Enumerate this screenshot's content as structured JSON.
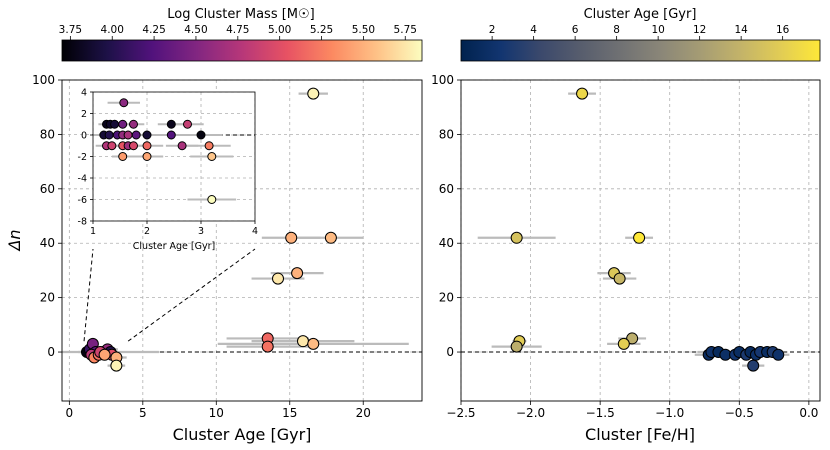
{
  "colors": {
    "errorbar": "#bbbbbb",
    "grid": "#b0b0b0",
    "marker_edge": "#000000",
    "magma": [
      "#000004",
      "#1d1147",
      "#51127c",
      "#822681",
      "#b73779",
      "#e75263",
      "#fc8961",
      "#fec287",
      "#fcfdbf"
    ],
    "cividis": [
      "#00224e",
      "#123570",
      "#3b496c",
      "#575d6d",
      "#707173",
      "#8a8678",
      "#a59c74",
      "#c3b369",
      "#e1cc55",
      "#fee838"
    ]
  },
  "chart_data": [
    {
      "id": "left",
      "type": "scatter",
      "xlabel": "Cluster Age [Gyr]",
      "ylabel": "Δn",
      "xlim": [
        -0.5,
        24
      ],
      "ylim": [
        -18,
        100
      ],
      "xticks": [
        0,
        5,
        10,
        15,
        20
      ],
      "yticks": [
        0,
        20,
        40,
        60,
        80,
        100
      ],
      "color_by": "mass",
      "colorbar": {
        "label": "Log Cluster Mass [M☉]",
        "cmap": "magma",
        "range": [
          3.7,
          5.85
        ],
        "ticks": [
          "3.75",
          "4.00",
          "4.25",
          "4.50",
          "4.75",
          "5.00",
          "5.25",
          "5.50",
          "5.75"
        ]
      },
      "points": [
        {
          "x": 16.6,
          "y": 95,
          "xerr": 1.0,
          "mass": 5.8
        },
        {
          "x": 15.1,
          "y": 42,
          "xerr": 2.0,
          "mass": 5.5
        },
        {
          "x": 17.8,
          "y": 42,
          "xerr": 2.2,
          "mass": 5.55
        },
        {
          "x": 15.5,
          "y": 29,
          "xerr": 1.8,
          "mass": 5.5
        },
        {
          "x": 14.2,
          "y": 27,
          "xerr": 1.8,
          "mass": 5.75
        },
        {
          "x": 13.5,
          "y": 5,
          "xerr": 2.8,
          "mass": 5.15
        },
        {
          "x": 13.5,
          "y": 2,
          "xerr": 2.8,
          "mass": 5.2
        },
        {
          "x": 15.9,
          "y": 4,
          "xerr": 3.5,
          "mass": 5.75
        },
        {
          "x": 16.6,
          "y": 3,
          "xerr": 6.5,
          "mass": 5.55
        },
        {
          "x": 1.2,
          "y": 0,
          "xerr": 0.6,
          "mass": 3.75
        },
        {
          "x": 1.4,
          "y": 1,
          "xerr": 0.5,
          "mass": 4.1
        },
        {
          "x": 1.6,
          "y": 3,
          "xerr": 0.4,
          "mass": 4.45
        },
        {
          "x": 1.8,
          "y": 0,
          "xerr": 0.6,
          "mass": 4.3
        },
        {
          "x": 1.5,
          "y": -1,
          "xerr": 0.4,
          "mass": 4.8
        },
        {
          "x": 1.7,
          "y": -2,
          "xerr": 0.4,
          "mass": 5.3
        },
        {
          "x": 2.0,
          "y": -1,
          "xerr": 0.5,
          "mass": 5.2
        },
        {
          "x": 2.3,
          "y": 0,
          "xerr": 0.6,
          "mass": 4.2
        },
        {
          "x": 2.6,
          "y": 1,
          "xerr": 0.7,
          "mass": 4.6
        },
        {
          "x": 2.8,
          "y": 0,
          "xerr": 0.5,
          "mass": 4.0
        },
        {
          "x": 2.9,
          "y": -1,
          "xerr": 0.6,
          "mass": 5.0
        },
        {
          "x": 3.2,
          "y": -2,
          "xerr": 0.7,
          "mass": 5.5
        },
        {
          "x": 3.2,
          "y": -5,
          "xerr": 0.6,
          "mass": 5.8
        },
        {
          "x": 2.1,
          "y": 0,
          "xerr": 4.0,
          "mass": 4.9
        },
        {
          "x": 2.4,
          "y": -1,
          "xerr": 1.0,
          "mass": 5.45
        }
      ],
      "inset": {
        "xlabel": "Cluster Age [Gyr]",
        "xlim": [
          1,
          4
        ],
        "ylim": [
          -8,
          4
        ],
        "xticks": [
          1,
          2,
          3,
          4
        ],
        "yticks": [
          -8,
          -6,
          -4,
          -2,
          0,
          2,
          4
        ],
        "points": [
          {
            "x": 1.57,
            "y": 3,
            "xerr": 0.3,
            "mass": 4.55
          },
          {
            "x": 1.25,
            "y": 1,
            "xerr": 0.15,
            "mass": 3.8
          },
          {
            "x": 1.32,
            "y": 1,
            "xerr": 0.15,
            "mass": 3.85
          },
          {
            "x": 1.4,
            "y": 1,
            "xerr": 0.15,
            "mass": 3.9
          },
          {
            "x": 1.55,
            "y": 1,
            "xerr": 0.2,
            "mass": 4.4
          },
          {
            "x": 1.75,
            "y": 1,
            "xerr": 0.2,
            "mass": 4.6
          },
          {
            "x": 2.45,
            "y": 1,
            "xerr": 0.25,
            "mass": 3.8
          },
          {
            "x": 2.75,
            "y": 1,
            "xerr": 0.3,
            "mass": 4.85
          },
          {
            "x": 1.2,
            "y": 0,
            "xerr": 0.2,
            "mass": 3.9
          },
          {
            "x": 1.3,
            "y": 0,
            "xerr": 0.2,
            "mass": 4.0
          },
          {
            "x": 1.45,
            "y": 0,
            "xerr": 0.2,
            "mass": 4.2
          },
          {
            "x": 1.55,
            "y": 0,
            "xerr": 0.2,
            "mass": 4.6
          },
          {
            "x": 1.65,
            "y": 0,
            "xerr": 0.2,
            "mass": 4.7
          },
          {
            "x": 1.8,
            "y": 0,
            "xerr": 0.25,
            "mass": 4.3
          },
          {
            "x": 2.0,
            "y": 0,
            "xerr": 0.25,
            "mass": 3.9
          },
          {
            "x": 2.45,
            "y": 0,
            "xerr": 0.3,
            "mass": 4.25
          },
          {
            "x": 3.0,
            "y": 0,
            "xerr": 0.4,
            "mass": 3.75
          },
          {
            "x": 1.25,
            "y": -1,
            "xerr": 0.2,
            "mass": 4.75
          },
          {
            "x": 1.35,
            "y": -1,
            "xerr": 0.2,
            "mass": 4.9
          },
          {
            "x": 1.55,
            "y": -1,
            "xerr": 0.2,
            "mass": 5.05
          },
          {
            "x": 1.65,
            "y": -1,
            "xerr": 0.2,
            "mass": 4.65
          },
          {
            "x": 1.75,
            "y": -1,
            "xerr": 0.2,
            "mass": 4.95
          },
          {
            "x": 2.65,
            "y": -1,
            "xerr": 0.3,
            "mass": 4.7
          },
          {
            "x": 3.15,
            "y": -1,
            "xerr": 0.4,
            "mass": 5.25
          },
          {
            "x": 1.55,
            "y": -2,
            "xerr": 0.2,
            "mass": 5.4
          },
          {
            "x": 2.0,
            "y": -2,
            "xerr": 0.3,
            "mass": 5.45
          },
          {
            "x": 3.2,
            "y": -2,
            "xerr": 0.4,
            "mass": 5.6
          },
          {
            "x": 2.0,
            "y": -1,
            "xerr": 0.3,
            "mass": 5.15
          },
          {
            "x": 3.2,
            "y": -6,
            "xerr": 0.45,
            "mass": 5.85
          }
        ]
      }
    },
    {
      "id": "right",
      "type": "scatter",
      "xlabel": "Cluster [Fe/H]",
      "xlim": [
        -2.5,
        0.08
      ],
      "ylim": [
        -18,
        100
      ],
      "xticks": [
        -2.5,
        -2.0,
        -1.5,
        -1.0,
        -0.5,
        0.0
      ],
      "xtick_labels": [
        "−2.5",
        "−2.0",
        "−1.5",
        "−1.0",
        "−0.5",
        "0.0"
      ],
      "yticks": [
        0,
        20,
        40,
        60,
        80,
        100
      ],
      "color_by": "age",
      "colorbar": {
        "label": "Cluster Age [Gyr]",
        "cmap": "cividis",
        "range": [
          0.5,
          17.8
        ],
        "ticks": [
          "2",
          "4",
          "6",
          "8",
          "10",
          "12",
          "14",
          "16"
        ]
      },
      "points": [
        {
          "x": -1.63,
          "y": 95,
          "xerr": 0.1,
          "age": 16.6
        },
        {
          "x": -2.1,
          "y": 42,
          "xerr": 0.28,
          "age": 15.1
        },
        {
          "x": -1.22,
          "y": 42,
          "xerr": 0.1,
          "age": 17.8
        },
        {
          "x": -1.4,
          "y": 29,
          "xerr": 0.12,
          "age": 15.5
        },
        {
          "x": -1.36,
          "y": 27,
          "xerr": 0.12,
          "age": 14.2
        },
        {
          "x": -1.27,
          "y": 5,
          "xerr": 0.1,
          "age": 13.5
        },
        {
          "x": -1.33,
          "y": 3,
          "xerr": 0.12,
          "age": 16.0
        },
        {
          "x": -2.08,
          "y": 4,
          "xerr": 0.05,
          "age": 15.9
        },
        {
          "x": -2.1,
          "y": 2,
          "xerr": 0.18,
          "age": 13.5
        },
        {
          "x": -0.72,
          "y": -1,
          "xerr": 0.1,
          "age": 1.5
        },
        {
          "x": -0.7,
          "y": 0,
          "xerr": 0.1,
          "age": 2.0
        },
        {
          "x": -0.65,
          "y": 0,
          "xerr": 0.08,
          "age": 1.3
        },
        {
          "x": -0.6,
          "y": -1,
          "xerr": 0.08,
          "age": 1.8
        },
        {
          "x": -0.53,
          "y": -1,
          "xerr": 0.08,
          "age": 2.3
        },
        {
          "x": -0.5,
          "y": 0,
          "xerr": 0.08,
          "age": 1.6
        },
        {
          "x": -0.45,
          "y": -1,
          "xerr": 0.1,
          "age": 2.8
        },
        {
          "x": -0.42,
          "y": 0,
          "xerr": 0.08,
          "age": 1.4
        },
        {
          "x": -0.4,
          "y": -5,
          "xerr": 0.08,
          "age": 3.2
        },
        {
          "x": -0.38,
          "y": -1,
          "xerr": 0.08,
          "age": 1.9
        },
        {
          "x": -0.35,
          "y": 0,
          "xerr": 0.08,
          "age": 2.6
        },
        {
          "x": -0.3,
          "y": 0,
          "xerr": 0.1,
          "age": 1.7
        },
        {
          "x": -0.26,
          "y": 0,
          "xerr": 0.08,
          "age": 2.9
        },
        {
          "x": -0.22,
          "y": -1,
          "xerr": 0.08,
          "age": 2.1
        }
      ]
    }
  ]
}
